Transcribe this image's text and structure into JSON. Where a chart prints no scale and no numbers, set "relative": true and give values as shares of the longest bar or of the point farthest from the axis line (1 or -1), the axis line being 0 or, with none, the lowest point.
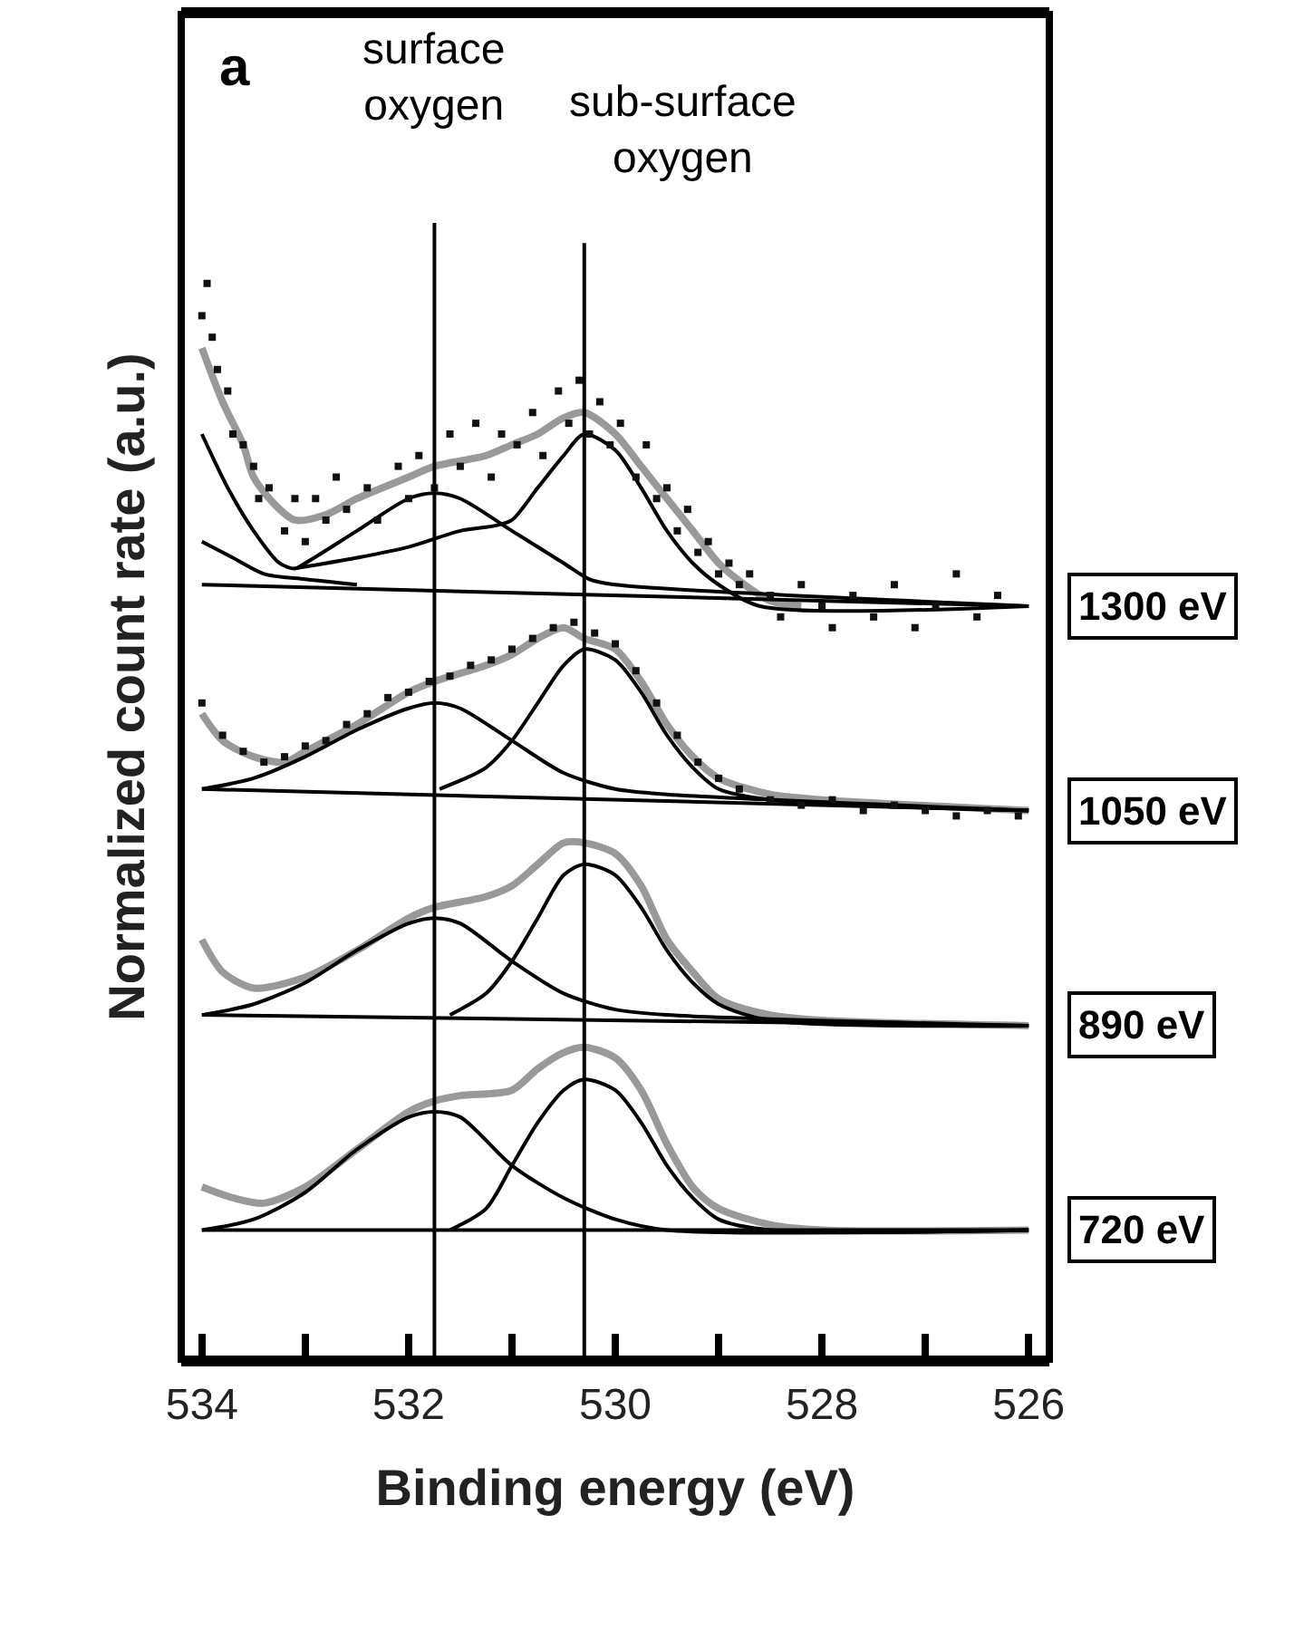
{
  "chart_data": {
    "type": "line",
    "relative": true,
    "xlabel": "Binding energy (eV)",
    "ylabel": "Normalized count rate (a.u.)",
    "xlim": [
      534.2,
      525.8
    ],
    "xticks": [
      534,
      {
        "value": 533,
        "label": null
      },
      532,
      {
        "value": 531,
        "label": null
      },
      530,
      {
        "value": 529,
        "label": null
      },
      528,
      {
        "value": 527,
        "label": null
      },
      526
    ],
    "annotations": [
      "a"
    ],
    "ref_lines": [
      {
        "axis": "x",
        "value": 531.75,
        "label": "surface oxygen"
      },
      {
        "axis": "x",
        "value": 530.3,
        "label": "sub-surface oxygen"
      }
    ],
    "series": [
      {
        "type": "scatter",
        "color": "#111111",
        "x": [
          533.95,
          534,
          533.9,
          533.85,
          533.75,
          533.7,
          533.6,
          533.5,
          533.45,
          533.35,
          533.2,
          533.1,
          533.0,
          532.9,
          532.8,
          532.7,
          532.6,
          532.4,
          532.3,
          532.1,
          532.0,
          531.9,
          531.75,
          531.6,
          531.5,
          531.35,
          531.2,
          531.1,
          530.95,
          530.8,
          530.7,
          530.55,
          530.45,
          530.35,
          530.25,
          530.15,
          530.05,
          529.95,
          529.8,
          529.7,
          529.6,
          529.5,
          529.4,
          529.3,
          529.2,
          529.1,
          529.0,
          528.9,
          528.8,
          528.7,
          528.5,
          528.4,
          528.2,
          528.0,
          527.9,
          527.7,
          527.5,
          527.3,
          527.1,
          526.9,
          526.7,
          526.5,
          526.3
        ],
        "values": [
          1.0,
          0.97,
          0.95,
          0.92,
          0.9,
          0.86,
          0.85,
          0.83,
          0.8,
          0.81,
          0.77,
          0.8,
          0.76,
          0.8,
          0.78,
          0.82,
          0.79,
          0.81,
          0.78,
          0.83,
          0.8,
          0.84,
          0.81,
          0.86,
          0.83,
          0.87,
          0.82,
          0.86,
          0.85,
          0.88,
          0.84,
          0.9,
          0.87,
          0.91,
          0.86,
          0.89,
          0.85,
          0.87,
          0.82,
          0.85,
          0.8,
          0.81,
          0.77,
          0.79,
          0.75,
          0.76,
          0.73,
          0.74,
          0.72,
          0.73,
          0.71,
          0.69,
          0.72,
          0.7,
          0.68,
          0.71,
          0.69,
          0.72,
          0.68,
          0.7,
          0.73,
          0.69,
          0.71
        ]
      },
      {
        "name": "1300 eV",
        "color": "#999999",
        "x": [
          534,
          533.8,
          533.6,
          533.5,
          533.3,
          533.1,
          532.8,
          532.5,
          532,
          531.75,
          531.25,
          531,
          530.75,
          530.5,
          530.3,
          530,
          529.75,
          529.5,
          529.25,
          529,
          528.75,
          528.5,
          528.2
        ],
        "values": [
          0.94,
          0.89,
          0.85,
          0.82,
          0.795,
          0.78,
          0.785,
          0.8,
          0.82,
          0.83,
          0.84,
          0.85,
          0.86,
          0.875,
          0.88,
          0.86,
          0.83,
          0.8,
          0.77,
          0.74,
          0.72,
          0.705,
          0.7
        ]
      },
      {
        "color": "#000000",
        "x": [
          534,
          526
        ],
        "values": [
          0.72,
          0.7
        ]
      },
      {
        "color": "#000000",
        "x": [
          534,
          533.7,
          533.4,
          533,
          532.5
        ],
        "values": [
          0.76,
          0.745,
          0.73,
          0.725,
          0.72
        ]
      },
      {
        "color": "#000000",
        "x": [
          534,
          533.75,
          533.5,
          533.25,
          533.1,
          533,
          532.5,
          532,
          531.75,
          531.5,
          531,
          530.5,
          530.25,
          530,
          526
        ],
        "values": [
          0.86,
          0.81,
          0.77,
          0.74,
          0.735,
          0.74,
          0.77,
          0.8,
          0.805,
          0.8,
          0.77,
          0.74,
          0.725,
          0.72,
          0.7
        ]
      },
      {
        "color": "#000000",
        "x": [
          533.1,
          532.5,
          532,
          531.5,
          531.15,
          531,
          530.75,
          530.5,
          530.3,
          530,
          529.75,
          529.5,
          529.25,
          529,
          528.6,
          526
        ],
        "values": [
          0.735,
          0.745,
          0.755,
          0.77,
          0.775,
          0.78,
          0.81,
          0.84,
          0.86,
          0.845,
          0.81,
          0.77,
          0.74,
          0.72,
          0.7,
          0.7
        ]
      },
      {
        "type": "scatter",
        "color": "#111111",
        "x": [
          534,
          533.8,
          533.6,
          533.4,
          533.2,
          533,
          532.8,
          532.6,
          532.4,
          532.2,
          532,
          531.8,
          531.6,
          531.4,
          531.2,
          531,
          530.8,
          530.6,
          530.4,
          530.2,
          530,
          529.8,
          529.6,
          529.4,
          529.2,
          529,
          528.8,
          528.5,
          528.2,
          527.9,
          527.6,
          527.3,
          527,
          526.7,
          526.4,
          526.1
        ],
        "values": [
          0.61,
          0.58,
          0.565,
          0.555,
          0.56,
          0.57,
          0.575,
          0.59,
          0.6,
          0.615,
          0.62,
          0.63,
          0.635,
          0.645,
          0.65,
          0.66,
          0.67,
          0.68,
          0.685,
          0.675,
          0.665,
          0.64,
          0.61,
          0.58,
          0.555,
          0.54,
          0.53,
          0.52,
          0.515,
          0.52,
          0.51,
          0.515,
          0.51,
          0.505,
          0.51,
          0.505
        ]
      },
      {
        "name": "1050 eV",
        "color": "#999999",
        "x": [
          534,
          533.8,
          533.5,
          533.2,
          533,
          532.5,
          532,
          531.75,
          531.25,
          531,
          530.75,
          530.5,
          530.3,
          530,
          529.75,
          529.5,
          529.25,
          529,
          528.5,
          528,
          526
        ],
        "values": [
          0.6,
          0.575,
          0.56,
          0.555,
          0.565,
          0.59,
          0.62,
          0.63,
          0.645,
          0.655,
          0.67,
          0.68,
          0.67,
          0.66,
          0.63,
          0.59,
          0.56,
          0.54,
          0.525,
          0.52,
          0.51
        ]
      },
      {
        "color": "#000000",
        "x": [
          534,
          526
        ],
        "values": [
          0.53,
          0.51
        ]
      },
      {
        "color": "#000000",
        "x": [
          534,
          533.5,
          533,
          532.5,
          532,
          531.75,
          531.5,
          531,
          530.5,
          530,
          529.5,
          526
        ],
        "values": [
          0.53,
          0.54,
          0.56,
          0.585,
          0.605,
          0.61,
          0.605,
          0.575,
          0.545,
          0.53,
          0.525,
          0.51
        ]
      },
      {
        "color": "#000000",
        "x": [
          531.7,
          531.25,
          531,
          530.75,
          530.5,
          530.3,
          530,
          529.75,
          529.5,
          529.25,
          529,
          528.5,
          526
        ],
        "values": [
          0.53,
          0.55,
          0.575,
          0.61,
          0.645,
          0.66,
          0.65,
          0.62,
          0.58,
          0.55,
          0.53,
          0.52,
          0.51
        ]
      },
      {
        "name": "890 eV",
        "color": "#999999",
        "x": [
          534,
          533.8,
          533.5,
          533,
          532.5,
          532,
          531.75,
          531.25,
          531,
          530.75,
          530.5,
          530.3,
          530,
          529.75,
          529.5,
          529.25,
          529,
          528.5,
          528,
          526
        ],
        "values": [
          0.39,
          0.36,
          0.345,
          0.355,
          0.38,
          0.41,
          0.42,
          0.43,
          0.44,
          0.46,
          0.48,
          0.48,
          0.47,
          0.44,
          0.39,
          0.36,
          0.335,
          0.32,
          0.315,
          0.31
        ]
      },
      {
        "color": "#000000",
        "x": [
          534,
          526
        ],
        "values": [
          0.32,
          0.31
        ]
      },
      {
        "color": "#000000",
        "x": [
          534,
          533.5,
          533,
          532.5,
          532,
          531.75,
          531.5,
          531,
          530.5,
          530,
          529.5,
          526
        ],
        "values": [
          0.32,
          0.33,
          0.35,
          0.38,
          0.405,
          0.41,
          0.405,
          0.37,
          0.34,
          0.325,
          0.32,
          0.31
        ]
      },
      {
        "color": "#000000",
        "x": [
          531.6,
          531.25,
          531,
          530.75,
          530.5,
          530.3,
          530,
          529.75,
          529.5,
          529.25,
          529,
          528.5,
          526
        ],
        "values": [
          0.32,
          0.34,
          0.37,
          0.41,
          0.45,
          0.46,
          0.45,
          0.42,
          0.38,
          0.35,
          0.33,
          0.315,
          0.31
        ]
      },
      {
        "name": "720 eV",
        "color": "#999999",
        "x": [
          534,
          533.7,
          533.4,
          533,
          532.5,
          532,
          531.75,
          531.5,
          531,
          530.75,
          530.5,
          530.3,
          530,
          529.75,
          529.5,
          529.25,
          529,
          528.5,
          528,
          526
        ],
        "values": [
          0.16,
          0.15,
          0.145,
          0.16,
          0.195,
          0.23,
          0.24,
          0.245,
          0.25,
          0.27,
          0.285,
          0.29,
          0.28,
          0.25,
          0.2,
          0.16,
          0.14,
          0.125,
          0.12,
          0.12
        ]
      },
      {
        "color": "#000000",
        "x": [
          534,
          526
        ],
        "values": [
          0.12,
          0.12
        ]
      },
      {
        "color": "#000000",
        "x": [
          534,
          533.5,
          533,
          532.5,
          532,
          531.75,
          531.5,
          531,
          530.5,
          530,
          529.5,
          526
        ],
        "values": [
          0.12,
          0.13,
          0.155,
          0.195,
          0.225,
          0.23,
          0.225,
          0.18,
          0.15,
          0.13,
          0.12,
          0.12
        ]
      },
      {
        "color": "#000000",
        "x": [
          531.6,
          531.25,
          531,
          530.75,
          530.5,
          530.3,
          530,
          529.75,
          529.5,
          529.25,
          529,
          528.5,
          526
        ],
        "values": [
          0.12,
          0.14,
          0.18,
          0.22,
          0.25,
          0.26,
          0.25,
          0.22,
          0.18,
          0.15,
          0.13,
          0.12,
          0.12
        ]
      }
    ]
  }
}
